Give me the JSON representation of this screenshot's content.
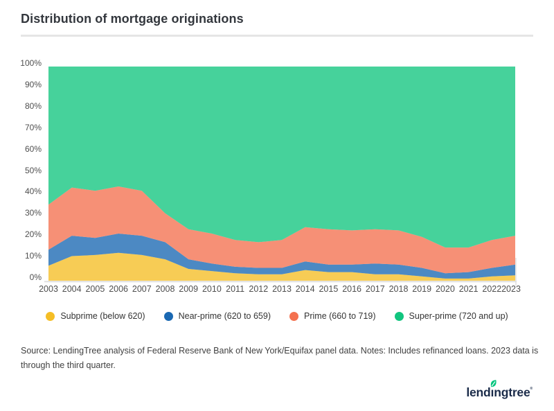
{
  "header": {
    "title": "Distribution of mortgage originations"
  },
  "chart_data": {
    "type": "area",
    "stacked": true,
    "title": "Distribution of mortgage originations",
    "xlabel": "",
    "ylabel": "",
    "ylim": [
      0,
      100
    ],
    "units": "%",
    "grid": false,
    "legend_position": "bottom",
    "y_ticks": [
      "0%",
      "10%",
      "20%",
      "30%",
      "40%",
      "50%",
      "60%",
      "70%",
      "80%",
      "90%",
      "100%"
    ],
    "categories": [
      "2003",
      "2004",
      "2005",
      "2006",
      "2007",
      "2008",
      "2009",
      "2010",
      "2011",
      "2012",
      "2013",
      "2014",
      "2015",
      "2016",
      "2017",
      "2018",
      "2019",
      "2020",
      "2021",
      "2022",
      "2023"
    ],
    "series": [
      {
        "name": "Subprime (below 620)",
        "color": "#F5BE25",
        "values": [
          7,
          11.5,
          12,
          13,
          12,
          10,
          5.5,
          4.5,
          3.5,
          3,
          3,
          5,
          4,
          4,
          3,
          3,
          2,
          1,
          1,
          2,
          2.5
        ]
      },
      {
        "name": "Near-prime (620 to 659)",
        "color": "#1A68B2",
        "values": [
          7.5,
          9.5,
          8,
          9,
          9,
          8,
          4.5,
          3.5,
          3,
          3,
          3,
          4,
          3.5,
          3.5,
          5,
          4.5,
          4,
          2.5,
          3,
          4,
          5
        ]
      },
      {
        "name": "Prime (660 to 719)",
        "color": "#F4714F",
        "values": [
          21,
          22.5,
          22,
          22,
          21,
          13.5,
          14,
          14,
          12.5,
          12,
          13,
          16,
          16.5,
          16,
          16,
          16,
          14.5,
          12,
          11.5,
          13,
          13.5
        ]
      },
      {
        "name": "Super-prime (720 and up)",
        "color": "#12C57F",
        "values": [
          64.5,
          56.5,
          58,
          56,
          58,
          68.5,
          76,
          78,
          81,
          82,
          81,
          75,
          76,
          76.5,
          76,
          76.5,
          79.5,
          84.5,
          84.5,
          81,
          79
        ]
      }
    ],
    "area_fill_opacity": 0.78,
    "axis_color": "#e0e0e0"
  },
  "source_note": "Source: LendingTree analysis of Federal Reserve Bank of New York/Equifax panel data. Notes: Includes refinanced loans. 2023 data is through the third quarter.",
  "logo": {
    "text": "lendingtree",
    "text_color": "#1a2b49",
    "leaf_color": "#00C47E"
  }
}
